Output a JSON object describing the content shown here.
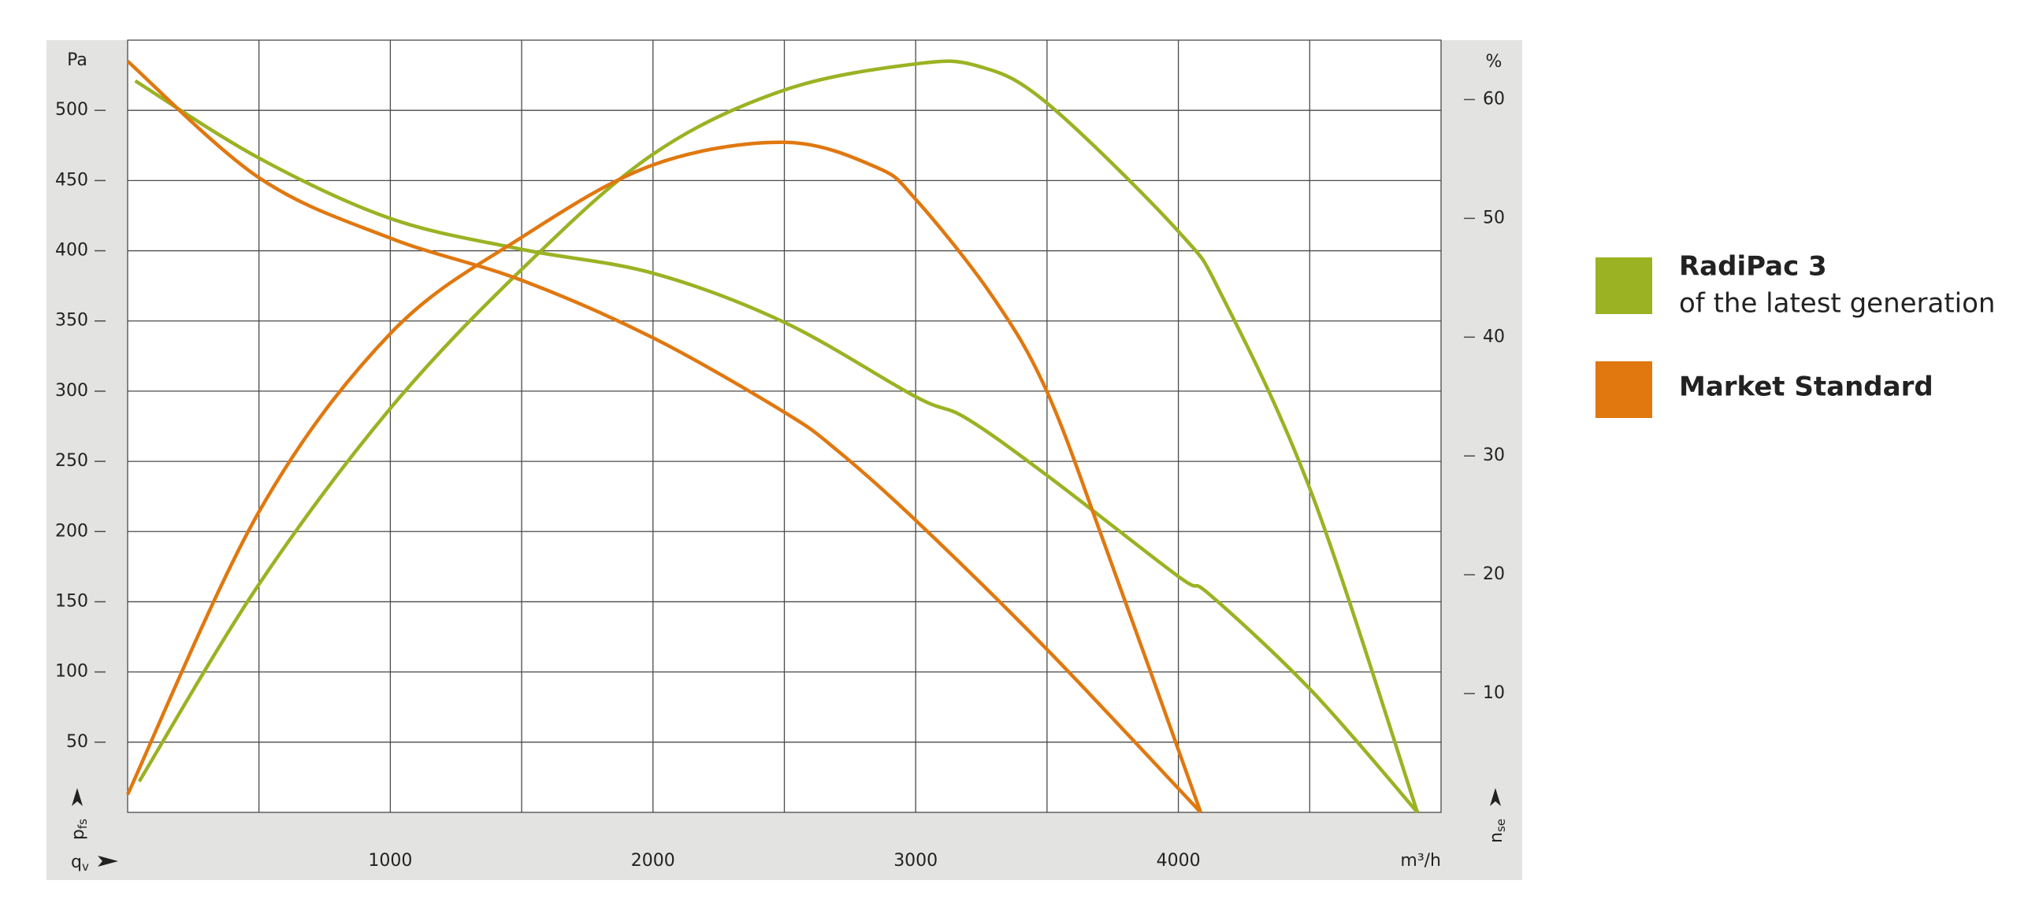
{
  "chart_data": {
    "type": "line",
    "ylabel_unit": "Pa",
    "ylabel_symbol": "p",
    "ylabel_sub": "fs",
    "y2label_unit": "%",
    "y2label_symbol": "n",
    "y2label_sub": "se",
    "xlabel_symbol": "q",
    "xlabel_sub": "v",
    "x_unit": "m³/h",
    "xlim": [
      0,
      5000
    ],
    "xticks": [
      1000,
      2000,
      3000,
      4000
    ],
    "xgrid": [
      500,
      1000,
      1500,
      2000,
      2500,
      3000,
      3500,
      4000,
      4500
    ],
    "ylim": [
      0,
      550
    ],
    "yticks": [
      50,
      100,
      150,
      200,
      250,
      300,
      350,
      400,
      450,
      500
    ],
    "y2lim": [
      0,
      65
    ],
    "y2ticks": [
      10,
      20,
      30,
      40,
      50,
      60
    ],
    "grid": true,
    "legend": "right",
    "series": [
      {
        "name": "RadiPac 3",
        "description": "of the latest generation",
        "color": "#9bb223",
        "pressure": {
          "x": [
            29,
            500,
            1000,
            1500,
            2000,
            2500,
            3000,
            3190,
            3500,
            4000,
            4120,
            4510,
            4910
          ],
          "values": [
            521,
            466,
            423,
            401,
            384,
            349,
            296,
            281,
            240,
            168,
            155,
            86,
            0
          ]
        },
        "efficiency": {
          "axis": "y2",
          "x": [
            44,
            500,
            1000,
            1500,
            2000,
            2500,
            3000,
            3240,
            3500,
            4000,
            4170,
            4510,
            4910
          ],
          "values": [
            2.6,
            19.2,
            34,
            45.7,
            55.4,
            60.8,
            63,
            62.8,
            59.7,
            48.9,
            43.3,
            26.7,
            0
          ]
        }
      },
      {
        "name": "Market Standard",
        "color": "#e0780f",
        "pressure": {
          "x": [
            0,
            500,
            1000,
            1500,
            2000,
            2500,
            2700,
            3000,
            3500,
            4085
          ],
          "values": [
            535,
            452,
            409,
            379,
            338,
            285,
            258,
            208,
            116,
            0
          ]
        },
        "efficiency": {
          "axis": "y2",
          "x": [
            0,
            500,
            1000,
            1500,
            2000,
            2500,
            2850,
            3000,
            3290,
            3500,
            3730,
            4085
          ],
          "values": [
            1.5,
            25.3,
            40.3,
            48.4,
            54.5,
            56.4,
            54.3,
            51.6,
            43.5,
            35.4,
            21.9,
            0
          ]
        }
      }
    ]
  }
}
